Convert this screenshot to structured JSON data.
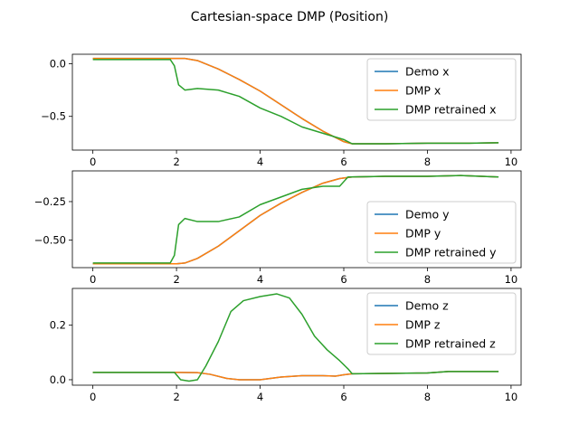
{
  "chart_data": {
    "type": "line",
    "title": "Cartesian-space DMP (Position)",
    "colors": {
      "demo": "#1f77b4",
      "dmp": "#ff7f0e",
      "retrained": "#2ca02c"
    },
    "subplots": [
      {
        "id": "x",
        "xlim": [
          -0.49,
          10.24
        ],
        "ylim": [
          -0.82,
          0.09
        ],
        "xticks": [
          0,
          2,
          4,
          6,
          8,
          10
        ],
        "yticks": [
          0.0,
          -0.5
        ],
        "ytick_labels": [
          "0.0",
          "−0.5"
        ],
        "legend": "upper right",
        "series": [
          {
            "name": "Demo x",
            "key": "demo",
            "x": [
              0,
              0.5,
              1,
              1.5,
              2,
              2.2,
              2.5,
              3,
              3.5,
              4,
              4.5,
              5,
              5.5,
              6,
              6.2,
              7,
              8,
              9,
              9.7
            ],
            "y": [
              0.05,
              0.05,
              0.05,
              0.05,
              0.05,
              0.05,
              0.03,
              -0.05,
              -0.15,
              -0.26,
              -0.39,
              -0.52,
              -0.64,
              -0.74,
              -0.76,
              -0.76,
              -0.755,
              -0.755,
              -0.75
            ]
          },
          {
            "name": "DMP x",
            "key": "dmp",
            "x": [
              0,
              0.5,
              1,
              1.5,
              2,
              2.2,
              2.5,
              3,
              3.5,
              4,
              4.5,
              5,
              5.5,
              6,
              6.2,
              7,
              8,
              9,
              9.7
            ],
            "y": [
              0.05,
              0.05,
              0.05,
              0.05,
              0.05,
              0.05,
              0.03,
              -0.05,
              -0.15,
              -0.26,
              -0.39,
              -0.52,
              -0.64,
              -0.74,
              -0.76,
              -0.76,
              -0.755,
              -0.755,
              -0.75
            ]
          },
          {
            "name": "DMP retrained x",
            "key": "retrained",
            "x": [
              0,
              0.5,
              1,
              1.5,
              1.85,
              1.95,
              2.05,
              2.2,
              2.5,
              3,
              3.5,
              4,
              4.5,
              5,
              5.5,
              6,
              6.2,
              7,
              8,
              9,
              9.7
            ],
            "y": [
              0.04,
              0.04,
              0.04,
              0.04,
              0.04,
              -0.02,
              -0.2,
              -0.25,
              -0.235,
              -0.25,
              -0.31,
              -0.42,
              -0.5,
              -0.6,
              -0.66,
              -0.72,
              -0.76,
              -0.76,
              -0.755,
              -0.755,
              -0.75
            ]
          }
        ]
      },
      {
        "id": "y",
        "xlim": [
          -0.49,
          10.24
        ],
        "ylim": [
          -0.68,
          -0.05
        ],
        "xticks": [
          0,
          2,
          4,
          6,
          8,
          10
        ],
        "yticks": [
          -0.25,
          -0.5
        ],
        "ytick_labels": [
          "−0.25",
          "−0.50"
        ],
        "legend": "lower right",
        "series": [
          {
            "name": "Demo y",
            "key": "demo",
            "x": [
              0,
              0.5,
              1,
              1.5,
              2,
              2.2,
              2.5,
              3,
              3.5,
              4,
              4.5,
              5,
              5.5,
              5.9,
              6.2,
              7,
              8,
              8.8,
              9.7
            ],
            "y": [
              -0.655,
              -0.655,
              -0.655,
              -0.655,
              -0.655,
              -0.65,
              -0.62,
              -0.54,
              -0.44,
              -0.34,
              -0.26,
              -0.19,
              -0.13,
              -0.1,
              -0.09,
              -0.085,
              -0.085,
              -0.08,
              -0.09
            ]
          },
          {
            "name": "DMP y",
            "key": "dmp",
            "x": [
              0,
              0.5,
              1,
              1.5,
              2,
              2.2,
              2.5,
              3,
              3.5,
              4,
              4.5,
              5,
              5.5,
              5.9,
              6.2,
              7,
              8,
              8.8,
              9.7
            ],
            "y": [
              -0.655,
              -0.655,
              -0.655,
              -0.655,
              -0.655,
              -0.65,
              -0.62,
              -0.54,
              -0.44,
              -0.34,
              -0.26,
              -0.19,
              -0.13,
              -0.1,
              -0.09,
              -0.085,
              -0.085,
              -0.08,
              -0.09
            ]
          },
          {
            "name": "DMP retrained y",
            "key": "retrained",
            "x": [
              0,
              0.5,
              1,
              1.5,
              1.85,
              1.95,
              2.05,
              2.2,
              2.5,
              3,
              3.5,
              4,
              4.5,
              5,
              5.5,
              5.9,
              6.1,
              7,
              8,
              8.8,
              9.7
            ],
            "y": [
              -0.65,
              -0.65,
              -0.65,
              -0.65,
              -0.65,
              -0.6,
              -0.4,
              -0.36,
              -0.38,
              -0.38,
              -0.35,
              -0.27,
              -0.22,
              -0.17,
              -0.15,
              -0.15,
              -0.09,
              -0.085,
              -0.085,
              -0.08,
              -0.09
            ]
          }
        ]
      },
      {
        "id": "z",
        "xlim": [
          -0.49,
          10.24
        ],
        "ylim": [
          -0.02,
          0.335
        ],
        "xticks": [
          0,
          2,
          4,
          6,
          8,
          10
        ],
        "yticks": [
          0.0,
          0.2
        ],
        "ytick_labels": [
          "0.0",
          "0.2"
        ],
        "legend": "upper right",
        "series": [
          {
            "name": "Demo z",
            "key": "demo",
            "x": [
              0,
              0.5,
              1,
              1.5,
              2,
              2.5,
              2.8,
              3.2,
              3.5,
              4,
              4.5,
              5,
              5.5,
              5.8,
              6,
              6.2,
              7,
              8,
              8.5,
              9.7
            ],
            "y": [
              0.027,
              0.027,
              0.027,
              0.027,
              0.027,
              0.026,
              0.02,
              0.005,
              0.0,
              0.0,
              0.01,
              0.015,
              0.015,
              0.013,
              0.018,
              0.022,
              0.023,
              0.025,
              0.03,
              0.03
            ]
          },
          {
            "name": "DMP z",
            "key": "dmp",
            "x": [
              0,
              0.5,
              1,
              1.5,
              2,
              2.5,
              2.8,
              3.2,
              3.5,
              4,
              4.5,
              5,
              5.5,
              5.8,
              6,
              6.2,
              7,
              8,
              8.5,
              9.7
            ],
            "y": [
              0.027,
              0.027,
              0.027,
              0.027,
              0.027,
              0.026,
              0.02,
              0.005,
              0.0,
              0.0,
              0.01,
              0.015,
              0.015,
              0.013,
              0.018,
              0.022,
              0.023,
              0.025,
              0.03,
              0.03
            ]
          },
          {
            "name": "DMP retrained z",
            "key": "retrained",
            "x": [
              0,
              0.5,
              1,
              1.5,
              1.95,
              2.1,
              2.3,
              2.5,
              2.7,
              3,
              3.3,
              3.6,
              4,
              4.4,
              4.7,
              5,
              5.3,
              5.6,
              5.9,
              6.1,
              6.2,
              7,
              8,
              8.5,
              9.7
            ],
            "y": [
              0.027,
              0.027,
              0.027,
              0.027,
              0.027,
              0.0,
              -0.005,
              0.0,
              0.05,
              0.14,
              0.25,
              0.29,
              0.305,
              0.315,
              0.3,
              0.24,
              0.16,
              0.11,
              0.07,
              0.04,
              0.022,
              0.023,
              0.025,
              0.03,
              0.03
            ]
          }
        ]
      }
    ]
  }
}
